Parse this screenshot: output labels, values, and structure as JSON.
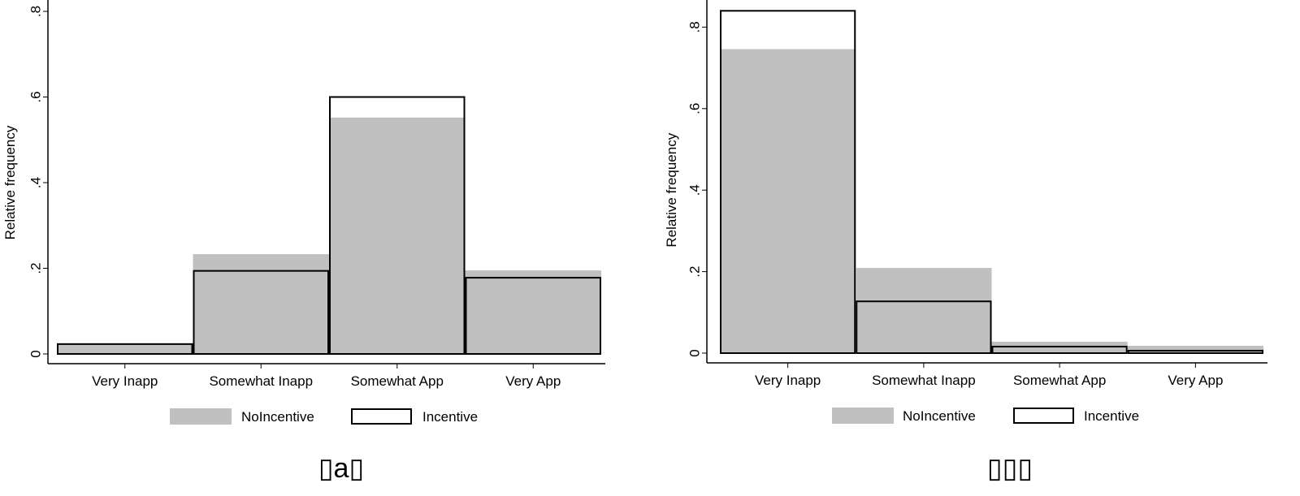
{
  "colors": {
    "noincentive": "#c0c0c0",
    "incentive_stroke": "#000000"
  },
  "chart_data": [
    {
      "type": "bar",
      "caption": "▯a▯",
      "ylabel": "Relative frequency",
      "xlabel": "",
      "ylim": [
        0,
        0.8
      ],
      "yticks": [
        0,
        0.2,
        0.4,
        0.6,
        0.8
      ],
      "ytick_labels": [
        "0",
        ".2",
        ".4",
        ".6",
        ".8"
      ],
      "categories": [
        "Very Inapp",
        "Somewhat Inapp",
        "Somewhat App",
        "Very App"
      ],
      "legend": [
        "NoIncentive",
        "Incentive"
      ],
      "legend_position": "bottom",
      "series": [
        {
          "name": "NoIncentive",
          "values": [
            0.025,
            0.233,
            0.552,
            0.195
          ]
        },
        {
          "name": "Incentive",
          "values": [
            0.023,
            0.194,
            0.6,
            0.178
          ]
        }
      ]
    },
    {
      "type": "bar",
      "caption": "▯▯▯",
      "ylabel": "Relative frequency",
      "xlabel": "",
      "ylim": [
        0,
        0.84
      ],
      "yticks": [
        0,
        0.2,
        0.4,
        0.6,
        0.8
      ],
      "ytick_labels": [
        "0",
        ".2",
        ".4",
        ".6",
        ".8"
      ],
      "categories": [
        "Very Inapp",
        "Somewhat Inapp",
        "Somewhat App",
        "Very App"
      ],
      "legend": [
        "NoIncentive",
        "Incentive"
      ],
      "legend_position": "bottom",
      "series": [
        {
          "name": "NoIncentive",
          "values": [
            0.746,
            0.209,
            0.028,
            0.018
          ]
        },
        {
          "name": "Incentive",
          "values": [
            0.84,
            0.127,
            0.016,
            0.006
          ]
        }
      ]
    }
  ]
}
